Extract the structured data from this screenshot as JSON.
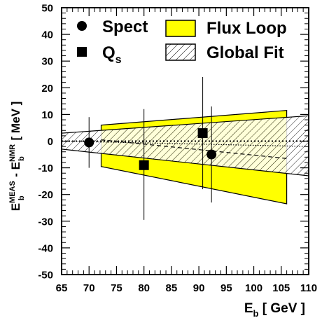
{
  "chart_data": {
    "type": "scatter",
    "title": "",
    "xlabel": {
      "main": "E",
      "sub": "b",
      "suffix": " [ GeV ]"
    },
    "ylabel": {
      "main": "E",
      "sub": "b",
      "sup": "MEAS",
      "mid": " - E",
      "sub2": "b",
      "sup2": "NMR",
      "suffix": "  [ MeV ]"
    },
    "xlim": [
      65,
      110
    ],
    "ylim": [
      -50,
      50
    ],
    "xticks": [
      65,
      70,
      75,
      80,
      85,
      90,
      95,
      100,
      105,
      110
    ],
    "yticks": [
      -50,
      -40,
      -30,
      -20,
      -10,
      0,
      10,
      20,
      30,
      40,
      50
    ],
    "grid": false,
    "legend_position": "top",
    "legend": [
      {
        "name": "Spect",
        "sub": "",
        "marker": "circle"
      },
      {
        "name": "Q",
        "sub": "s",
        "marker": "square"
      },
      {
        "name": "Flux Loop",
        "sub": "",
        "marker": "band-yellow"
      },
      {
        "name": "Global Fit",
        "sub": "",
        "marker": "band-hatched"
      }
    ],
    "series": [
      {
        "name": "Spect",
        "marker": "circle",
        "points": [
          {
            "x": 70.0,
            "y": -0.5,
            "yerr_low": -10.0,
            "yerr_high": 9.0
          },
          {
            "x": 92.3,
            "y": -5.0,
            "yerr_low": -23.0,
            "yerr_high": 13.0
          }
        ]
      },
      {
        "name": "Qs",
        "marker": "square",
        "points": [
          {
            "x": 80.0,
            "y": -9.0,
            "yerr_low": -29.5,
            "yerr_high": 12.0
          },
          {
            "x": 90.7,
            "y": 3.0,
            "yerr_low": -18.0,
            "yerr_high": 24.0
          }
        ]
      }
    ],
    "bands": [
      {
        "name": "Flux Loop",
        "color": "#ffff00",
        "x": [
          72.2,
          106.0
        ],
        "upper": [
          6.0,
          11.5
        ],
        "lower": [
          -9.5,
          -23.5
        ],
        "central": [
          0.5,
          -6.5
        ]
      },
      {
        "name": "Global Fit",
        "color": "#ffffff",
        "hatched": true,
        "x": [
          65.0,
          110.0
        ],
        "upper": [
          3.0,
          9.5
        ],
        "lower": [
          -3.0,
          -13.0
        ],
        "central": [
          0.0,
          -2.0
        ]
      }
    ],
    "reference_line": {
      "y": 0.0,
      "style": "dotted"
    }
  }
}
